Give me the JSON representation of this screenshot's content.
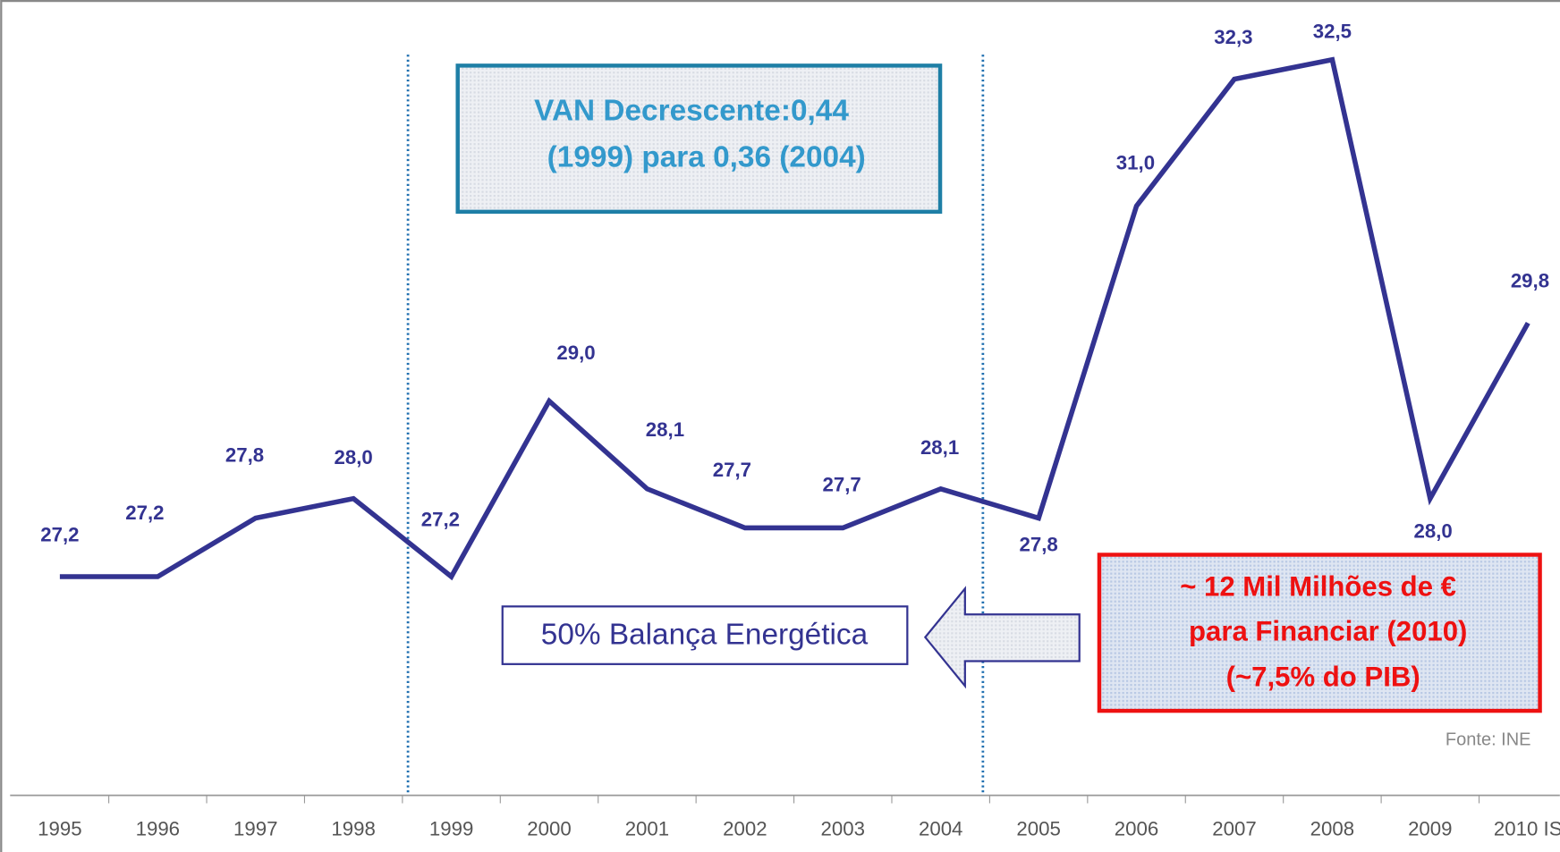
{
  "chart_data": {
    "type": "line",
    "categories": [
      "1995",
      "1996",
      "1997",
      "1998",
      "1999",
      "2000",
      "2001",
      "2002",
      "2003",
      "2004",
      "2005",
      "2006",
      "2007",
      "2008",
      "2009",
      "2010 IS"
    ],
    "series": [
      {
        "color": "#333391",
        "values": [
          27.2,
          27.2,
          27.8,
          28.0,
          27.2,
          29.0,
          28.1,
          27.7,
          27.7,
          28.1,
          27.8,
          31.0,
          32.3,
          32.5,
          28.0,
          29.8
        ],
        "value_labels": [
          "27,2",
          "27,2",
          "27,8",
          "28,0",
          "27,2",
          "29,0",
          "28,1",
          "27,7",
          "27,7",
          "28,1",
          "27,8",
          "31,0",
          "32,3",
          "32,5",
          "28,0",
          "29,8"
        ]
      }
    ],
    "annotations": {
      "van": [
        "VAN  Decrescente:0,44",
        "(1999) para 0,36 (2004)"
      ],
      "balanca": "50% Balança Energética",
      "financiar": [
        "~ 12 Mil Milhões de €",
        "para Financiar (2010)",
        "(~7,5% do PIB)"
      ],
      "source": "Fonte: INE"
    }
  }
}
